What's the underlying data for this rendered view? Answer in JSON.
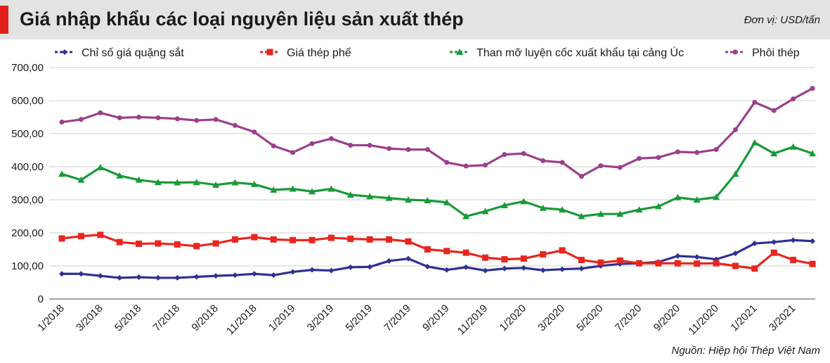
{
  "header": {
    "title": "Giá nhập khẩu các loại nguyên liệu sản xuất thép",
    "unit": "Đơn vị: USD/tấn"
  },
  "source": "Nguồn: Hiệp hội Thép Việt Nam",
  "chart_data": {
    "type": "line",
    "title": "Giá nhập khẩu các loại nguyên liệu sản xuất thép",
    "xlabel": "",
    "ylabel": "",
    "ylim": [
      0,
      700
    ],
    "yticks": [
      "0",
      "100,00",
      "200,00",
      "300,00",
      "400,00",
      "500,00",
      "600,00",
      "700,00"
    ],
    "ytick_values": [
      0,
      100,
      200,
      300,
      400,
      500,
      600,
      700
    ],
    "grid": true,
    "legend_position": "top",
    "x": [
      "1/2018",
      "2/2018",
      "3/2018",
      "4/2018",
      "5/2018",
      "6/2018",
      "7/2018",
      "8/2018",
      "9/2018",
      "10/2018",
      "11/2018",
      "12/2018",
      "1/2019",
      "2/2019",
      "3/2019",
      "4/2019",
      "5/2019",
      "6/2019",
      "7/2019",
      "8/2019",
      "9/2019",
      "10/2019",
      "11/2019",
      "12/2019",
      "1/2020",
      "2/2020",
      "3/2020",
      "4/2020",
      "5/2020",
      "6/2020",
      "7/2020",
      "8/2020",
      "9/2020",
      "10/2020",
      "11/2020",
      "12/2020",
      "1/2021",
      "2/2021",
      "3/2021",
      "4/2021"
    ],
    "xtick_labels": [
      "1/2018",
      "3/2018",
      "5/2018",
      "7/2018",
      "9/2018",
      "11/2018",
      "1/2019",
      "3/2019",
      "5/2019",
      "7/2019",
      "9/2019",
      "11/2019",
      "1/2020",
      "3/2020",
      "5/2020",
      "7/2020",
      "9/2020",
      "11/2020",
      "1/2021",
      "3/2021"
    ],
    "series": [
      {
        "name": "Chỉ số giá quặng sắt",
        "color": "#2f3192",
        "marker": "diamond",
        "values": [
          76,
          76,
          70,
          64,
          66,
          64,
          64,
          67,
          70,
          72,
          76,
          72,
          82,
          88,
          86,
          96,
          97,
          115,
          122,
          98,
          88,
          96,
          86,
          92,
          94,
          87,
          90,
          92,
          100,
          106,
          108,
          112,
          130,
          127,
          120,
          138,
          168,
          172,
          178,
          175
        ]
      },
      {
        "name": "Giá thép phế",
        "color": "#e8261f",
        "marker": "square",
        "values": [
          183,
          190,
          194,
          172,
          167,
          168,
          165,
          160,
          168,
          180,
          187,
          180,
          178,
          178,
          185,
          182,
          180,
          180,
          174,
          150,
          145,
          140,
          125,
          120,
          122,
          135,
          147,
          118,
          110,
          116,
          108,
          108,
          108,
          107,
          108,
          100,
          92,
          140,
          118,
          106
        ]
      },
      {
        "name": "Than mỡ luyện cốc xuất khẩu tại cảng Úc",
        "color": "#1a9a3a",
        "marker": "triangle",
        "values": [
          378,
          360,
          398,
          373,
          360,
          353,
          352,
          353,
          345,
          352,
          347,
          330,
          333,
          325,
          333,
          315,
          310,
          305,
          300,
          298,
          292,
          250,
          265,
          283,
          295,
          275,
          270,
          250,
          257,
          257,
          270,
          280,
          307,
          300,
          308,
          378,
          473,
          440,
          460,
          440
        ]
      },
      {
        "name": "Phôi thép",
        "color": "#9c3f8c",
        "marker": "circle",
        "values": [
          535,
          543,
          563,
          548,
          550,
          548,
          545,
          540,
          543,
          525,
          505,
          463,
          443,
          470,
          485,
          465,
          465,
          455,
          452,
          452,
          413,
          402,
          405,
          437,
          440,
          418,
          413,
          371,
          403,
          398,
          425,
          428,
          445,
          443,
          452,
          512,
          595,
          570,
          605,
          637
        ]
      }
    ]
  }
}
